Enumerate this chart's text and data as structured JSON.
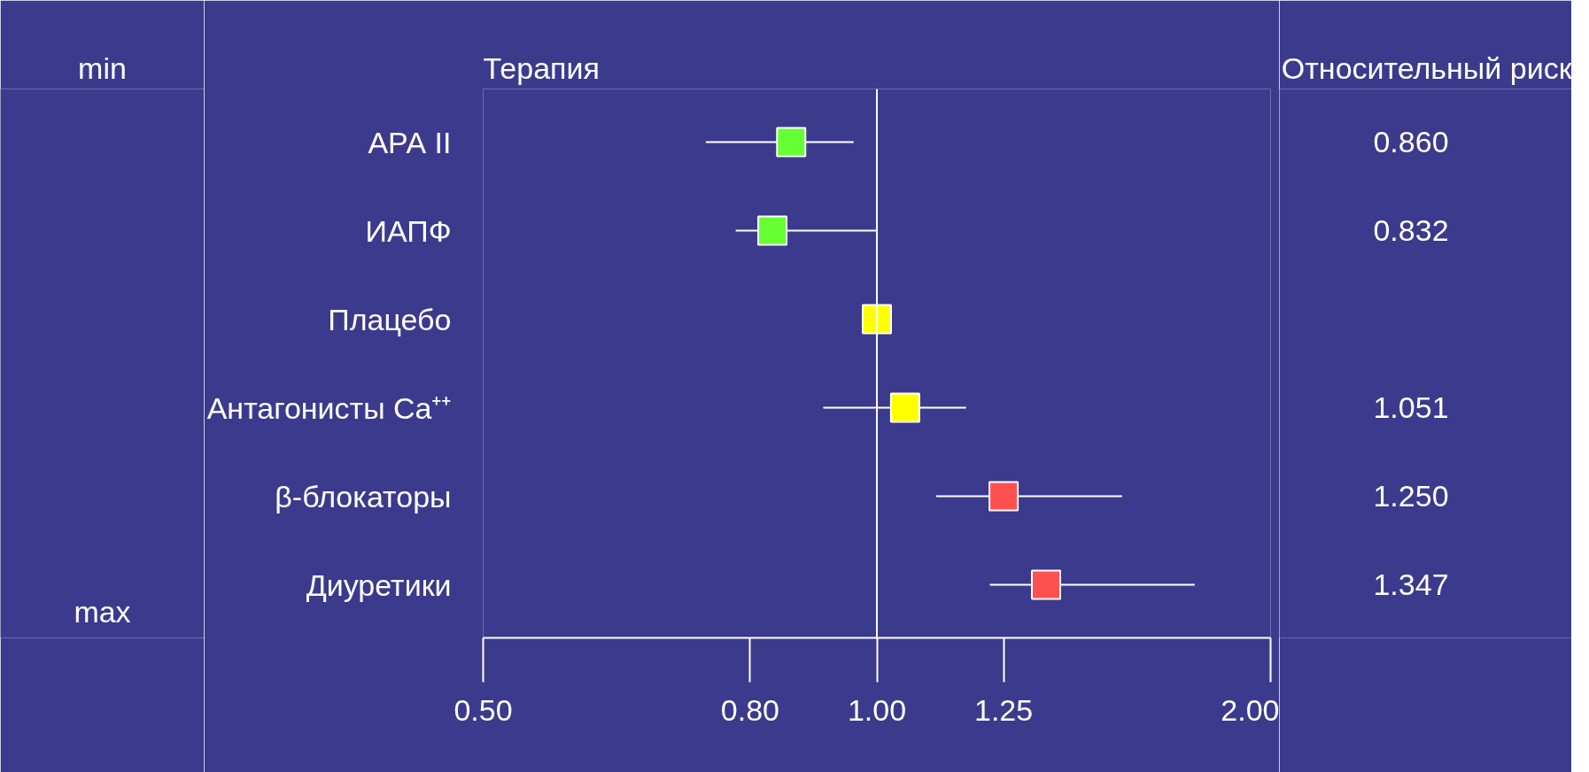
{
  "chart_data": {
    "type": "scatter",
    "orientation": "horizontal",
    "marker": "square",
    "ylabel": "Терапия",
    "categories": [
      "АРА II",
      "ИАПФ",
      "Плацебо",
      "Антагонисты Ca⁺⁺",
      "β-блокаторы",
      "Диуретики"
    ],
    "values": [
      0.86,
      0.832,
      1.0,
      1.051,
      1.25,
      1.347
    ],
    "errors": [
      [
        0.74,
        0.96
      ],
      [
        0.78,
        1.0
      ],
      null,
      [
        0.91,
        1.17
      ],
      [
        1.11,
        1.54
      ],
      [
        1.22,
        1.75
      ]
    ],
    "colors": [
      "#66ff33",
      "#66ff33",
      "#ffff00",
      "#ffff00",
      "#ff5050",
      "#ff5050"
    ],
    "value_labels": [
      "0.860",
      "0.832",
      null,
      "1.051",
      "1.250",
      "1.347"
    ],
    "log": "x",
    "xlim": [
      0.5,
      2.0
    ],
    "xticks": [
      {
        "value": 0.5,
        "label": "0.50"
      },
      {
        "value": 0.8,
        "label": "0.80"
      },
      {
        "value": 1.0,
        "label": "1.00"
      },
      {
        "value": 1.25,
        "label": "1.25"
      },
      {
        "value": 2.0,
        "label": "2.00"
      }
    ],
    "ref_lines": [
      {
        "axis": "x",
        "value": 1.0,
        "color": "#ffffff"
      }
    ],
    "grid": false,
    "annotations": [
      "min",
      "max",
      "Относительный риск"
    ]
  }
}
